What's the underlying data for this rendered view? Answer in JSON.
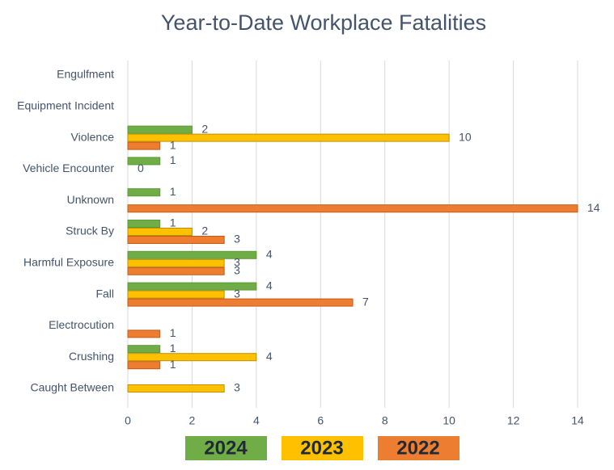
{
  "chart_data": {
    "type": "hbar",
    "title": "Year-to-Date Workplace Fatalities",
    "categories": [
      "Engulfment",
      "Equipment Incident",
      "Violence",
      "Vehicle Encounter",
      "Unknown",
      "Struck By",
      "Harmful Exposure",
      "Fall",
      "Electrocution",
      "Crushing",
      "Caught Between"
    ],
    "series": [
      {
        "name": "2024",
        "color": "#70ad47",
        "values": [
          null,
          null,
          2,
          1,
          1,
          1,
          4,
          4,
          null,
          1,
          null
        ]
      },
      {
        "name": "2023",
        "color": "#ffc000",
        "values": [
          null,
          null,
          10,
          0,
          null,
          2,
          3,
          3,
          null,
          4,
          3
        ]
      },
      {
        "name": "2022",
        "color": "#ed7d31",
        "values": [
          null,
          null,
          1,
          null,
          14,
          3,
          3,
          7,
          1,
          1,
          null
        ]
      }
    ],
    "xlim": [
      0,
      14
    ],
    "xticks": [
      0,
      2,
      4,
      6,
      8,
      10,
      12,
      14
    ],
    "grid": true
  }
}
